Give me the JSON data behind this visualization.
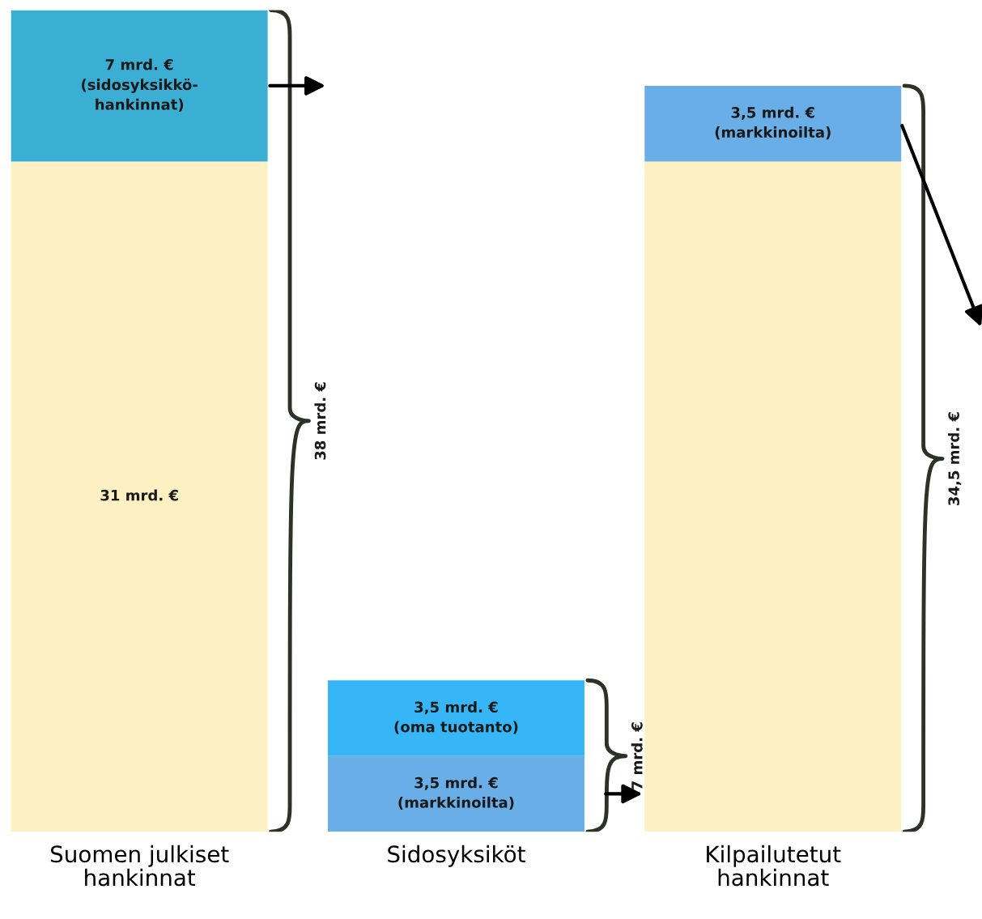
{
  "chart_data": {
    "type": "bar",
    "stacked": true,
    "categories": [
      "Suomen julkiset\nhankinnat",
      "Sidosyksiköt",
      "Kilpailutetut\nhankinnat"
    ],
    "series": [
      {
        "color": "#fdf0c2",
        "values": [
          31,
          null,
          31
        ],
        "value_labels": [
          "31 mrd. €",
          null,
          null
        ]
      },
      {
        "color": "#6aaee8",
        "values": [
          null,
          3.5,
          3.5
        ],
        "value_labels": [
          null,
          "3,5 mrd. €\n(markkinoilta)",
          "3,5 mrd. €\n(markkinoilta)"
        ]
      },
      {
        "color": "#36b6f6",
        "values": [
          null,
          3.5,
          null
        ],
        "value_labels": [
          null,
          "3,5 mrd. €\n(oma tuotanto)",
          null
        ]
      },
      {
        "color": "#3aaed3",
        "values": [
          7,
          null,
          null
        ],
        "value_labels": [
          "7 mrd. €\n(sidosyksikkö-\nhankinnat)",
          null,
          null
        ]
      }
    ],
    "annotations": [
      "38 mrd. €",
      "7 mrd. €",
      "34,5 mrd. €"
    ]
  }
}
